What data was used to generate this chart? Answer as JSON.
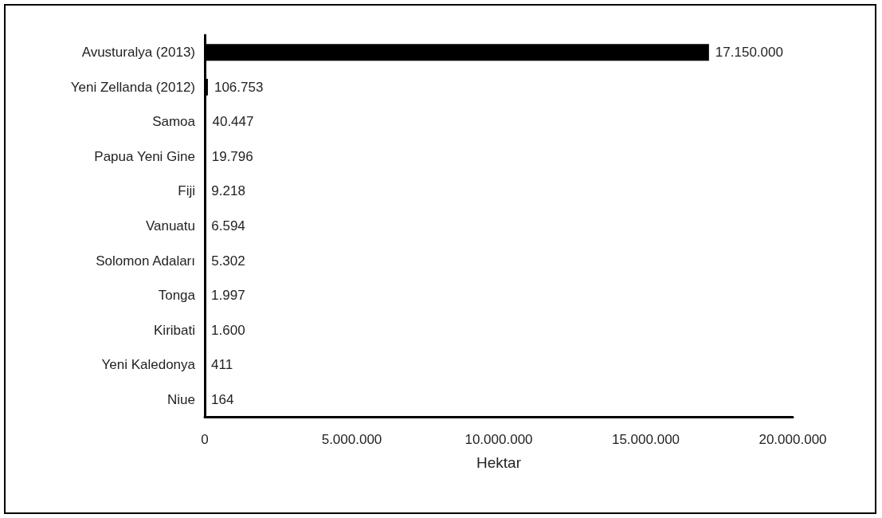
{
  "chart_data": {
    "type": "bar",
    "orientation": "horizontal",
    "categories": [
      "Avusturalya (2013)",
      "Yeni Zellanda (2012)",
      "Samoa",
      "Papua Yeni Gine",
      "Fiji",
      "Vanuatu",
      "Solomon Adaları",
      "Tonga",
      "Kiribati",
      "Yeni Kaledonya",
      "Niue"
    ],
    "values": [
      17150000,
      106753,
      40447,
      19796,
      9218,
      6594,
      5302,
      1997,
      1600,
      411,
      164
    ],
    "value_labels": [
      "17.150.000",
      "106.753",
      "40.447",
      "19.796",
      "9.218",
      "6.594",
      "5.302",
      "1.997",
      "1.600",
      "411",
      "164"
    ],
    "color": "#000000",
    "xlabel": "Hektar",
    "xlim": [
      0,
      20000000
    ],
    "xticks": [
      0,
      {
        "value": 5000000,
        "label": "5.000.000"
      },
      {
        "value": 10000000,
        "label": "10.000.000"
      },
      {
        "value": 15000000,
        "label": "15.000.000"
      },
      {
        "value": 20000000,
        "label": "20.000.000"
      }
    ],
    "grid": false
  }
}
